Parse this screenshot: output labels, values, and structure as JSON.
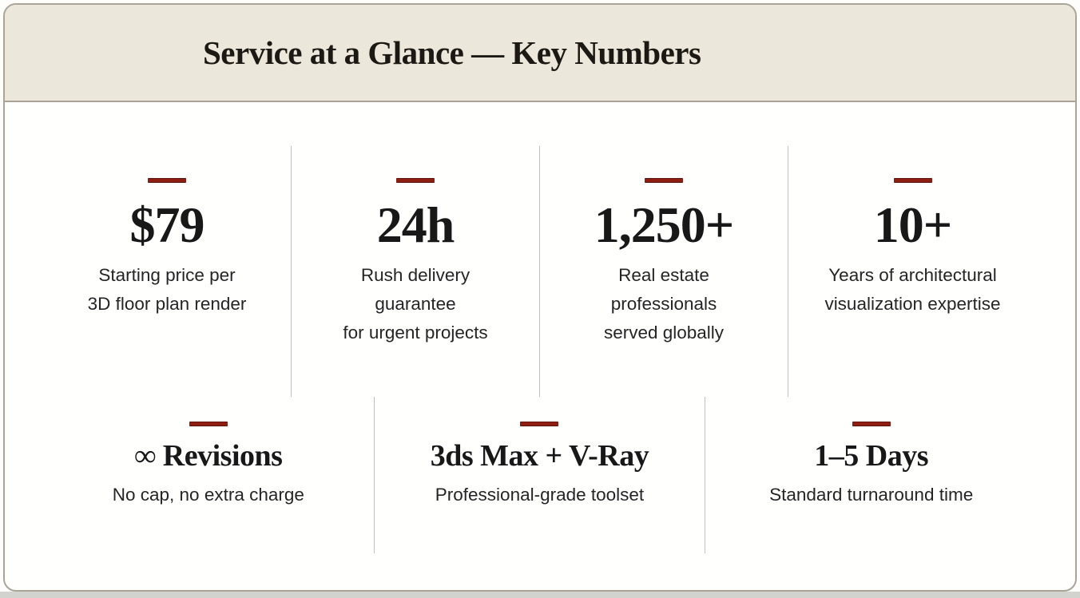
{
  "header": {
    "title": "Service at a Glance — Key Numbers"
  },
  "theme": {
    "accent_dash_color": "#8f1e12",
    "header_background": "#ebe7da",
    "card_border_color": "#a9a497",
    "divider_color": "#c3c1bd",
    "text_color": "#181818"
  },
  "stats_row1": [
    {
      "value": "$79",
      "caption": "Starting price per\n3D floor plan render"
    },
    {
      "value": "24h",
      "caption": "Rush delivery\nguarantee\nfor urgent projects"
    },
    {
      "value": "1,250+",
      "caption": "Real estate\nprofessionals\nserved globally"
    },
    {
      "value": "10+",
      "caption": "Years of architectural\nvisualization expertise"
    }
  ],
  "stats_row2": [
    {
      "value": "∞ Revisions",
      "caption": "No cap, no extra charge"
    },
    {
      "value": "3ds Max + V-Ray",
      "caption": "Professional-grade toolset"
    },
    {
      "value": "1–5 Days",
      "caption": "Standard turnaround time"
    }
  ]
}
